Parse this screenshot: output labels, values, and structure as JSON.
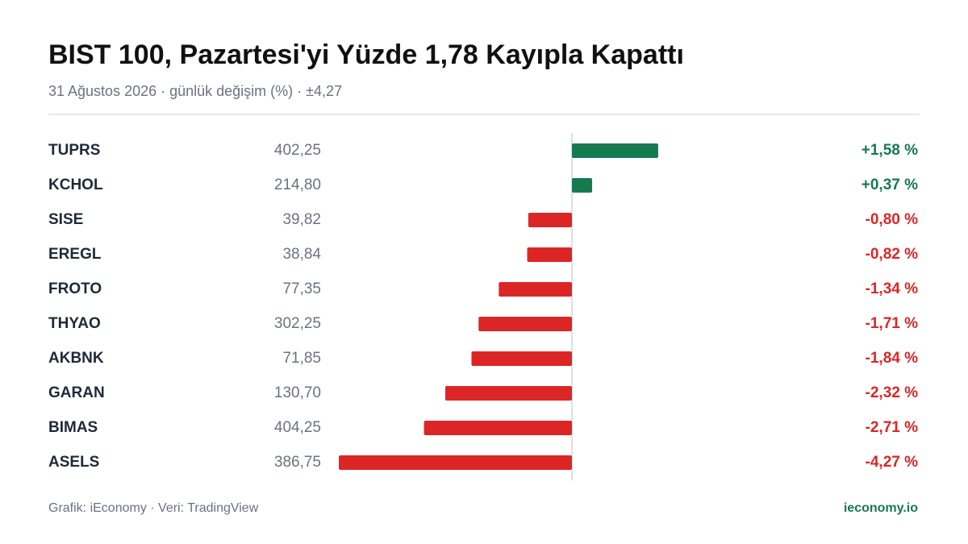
{
  "chart_data": {
    "type": "bar",
    "title": "BIST 100, Pazartesi'yi Yüzde 1,78 Kayıpla Kapattı",
    "subtitle": "31 Ağustos 2026 · günlük değişim (%) · ±4,27",
    "categories": [
      "TUPRS",
      "KCHOL",
      "SISE",
      "EREGL",
      "FROTO",
      "THYAO",
      "AKBNK",
      "GARAN",
      "BIMAS",
      "ASELS"
    ],
    "prices": [
      "402,25",
      "214,80",
      "39,82",
      "38,84",
      "77,35",
      "302,25",
      "71,85",
      "130,70",
      "404,25",
      "386,75"
    ],
    "values": [
      1.58,
      0.37,
      -0.8,
      -0.82,
      -1.34,
      -1.71,
      -1.84,
      -2.32,
      -2.71,
      -4.27
    ],
    "value_labels": [
      "+1,58 %",
      "+0,37 %",
      "-0,80 %",
      "-0,82 %",
      "-1,34 %",
      "-1,71 %",
      "-1,84 %",
      "-2,32 %",
      "-2,71 %",
      "-4,27 %"
    ],
    "xlim": [
      -4.27,
      4.27
    ],
    "color_positive": "#157a50",
    "color_negative": "#dc2626",
    "source": "Grafik: iEconomy · Veri: TradingView",
    "brand": "ieconomy.io"
  }
}
